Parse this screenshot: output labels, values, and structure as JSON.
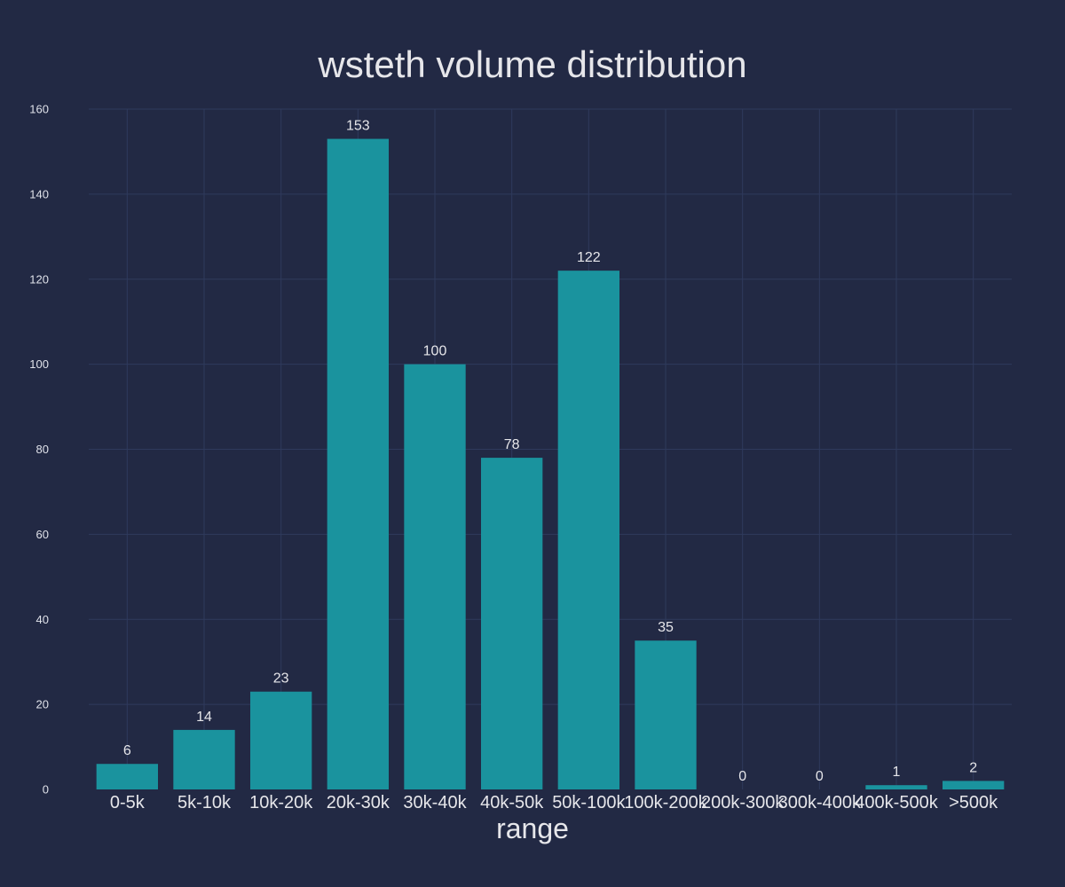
{
  "chart_data": {
    "type": "bar",
    "title": "wsteth volume distribution",
    "xlabel": "range",
    "ylabel": "",
    "categories": [
      "0-5k",
      "5k-10k",
      "10k-20k",
      "20k-30k",
      "30k-40k",
      "40k-50k",
      "50k-100k",
      "100k-200k",
      "200k-300k",
      "300k-400k",
      "400k-500k",
      ">500k"
    ],
    "values": [
      6,
      14,
      23,
      153,
      100,
      78,
      122,
      35,
      0,
      0,
      1,
      2
    ],
    "ylim": [
      0,
      160
    ],
    "yticks": [
      0,
      20,
      40,
      60,
      80,
      100,
      120,
      140,
      160
    ],
    "grid": true,
    "legend": "none",
    "colors": {
      "background": "#222944",
      "bar": "#1a939e",
      "grid": "#2f3a5c",
      "text": "#e6e6ea"
    }
  }
}
